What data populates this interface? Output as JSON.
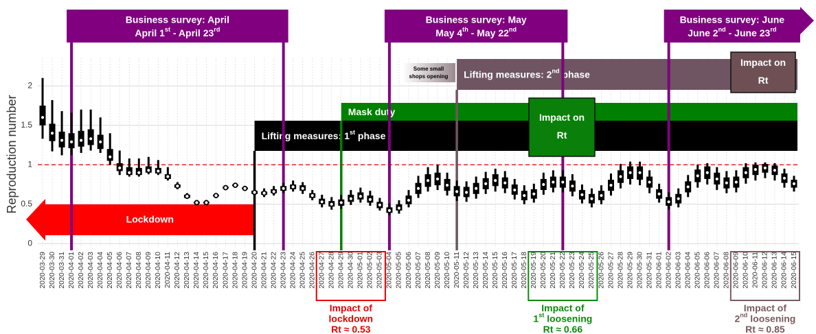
{
  "chart_data": {
    "type": "interval",
    "y_label": "Reproduction number",
    "categories": [
      "2020-03-29",
      "2020-03-30",
      "2020-03-31",
      "2020-04-01",
      "2020-04-02",
      "2020-04-03",
      "2020-04-04",
      "2020-04-05",
      "2020-04-06",
      "2020-04-07",
      "2020-04-08",
      "2020-04-09",
      "2020-04-10",
      "2020-04-11",
      "2020-04-12",
      "2020-04-13",
      "2020-04-14",
      "2020-04-15",
      "2020-04-16",
      "2020-04-17",
      "2020-04-18",
      "2020-04-19",
      "2020-04-20",
      "2020-04-21",
      "2020-04-22",
      "2020-04-23",
      "2020-04-24",
      "2020-04-25",
      "2020-04-26",
      "2020-04-27",
      "2020-04-28",
      "2020-04-29",
      "2020-04-30",
      "2020-05-01",
      "2020-05-02",
      "2020-05-03",
      "2020-05-04",
      "2020-05-05",
      "2020-05-06",
      "2020-05-07",
      "2020-05-08",
      "2020-05-09",
      "2020-05-10",
      "2020-05-11",
      "2020-05-12",
      "2020-05-13",
      "2020-05-14",
      "2020-05-15",
      "2020-05-16",
      "2020-05-17",
      "2020-05-18",
      "2020-05-19",
      "2020-05-20",
      "2020-05-21",
      "2020-05-22",
      "2020-05-23",
      "2020-05-24",
      "2020-05-25",
      "2020-05-26",
      "2020-05-27",
      "2020-05-28",
      "2020-05-29",
      "2020-05-30",
      "2020-05-31",
      "2020-06-01",
      "2020-06-02",
      "2020-06-03",
      "2020-06-04",
      "2020-06-05",
      "2020-06-06",
      "2020-06-07",
      "2020-06-08",
      "2020-06-09",
      "2020-06-10",
      "2020-06-11",
      "2020-06-12",
      "2020-06-13",
      "2020-06-14",
      "2020-06-15"
    ],
    "median": [
      1.6,
      1.4,
      1.31,
      1.29,
      1.31,
      1.33,
      1.29,
      1.1,
      0.96,
      0.9,
      0.9,
      0.93,
      0.92,
      0.85,
      0.73,
      0.6,
      0.52,
      0.52,
      0.61,
      0.71,
      0.74,
      0.7,
      0.65,
      0.64,
      0.66,
      0.7,
      0.72,
      0.7,
      0.61,
      0.53,
      0.5,
      0.52,
      0.57,
      0.6,
      0.56,
      0.49,
      0.42,
      0.45,
      0.55,
      0.7,
      0.8,
      0.82,
      0.74,
      0.66,
      0.65,
      0.7,
      0.76,
      0.8,
      0.77,
      0.68,
      0.61,
      0.63,
      0.75,
      0.78,
      0.78,
      0.73,
      0.62,
      0.57,
      0.61,
      0.74,
      0.85,
      0.9,
      0.9,
      0.78,
      0.63,
      0.53,
      0.57,
      0.72,
      0.86,
      0.9,
      0.82,
      0.77,
      0.78,
      0.9,
      0.94,
      0.96,
      0.93,
      0.83,
      0.76
    ],
    "low95": [
      1.33,
      1.17,
      1.12,
      1.12,
      1.15,
      1.18,
      1.15,
      1.0,
      0.87,
      0.85,
      0.85,
      0.88,
      0.87,
      0.8,
      0.69,
      0.57,
      0.5,
      0.5,
      0.59,
      0.69,
      0.72,
      0.67,
      0.6,
      0.59,
      0.61,
      0.64,
      0.66,
      0.63,
      0.55,
      0.46,
      0.43,
      0.44,
      0.49,
      0.52,
      0.48,
      0.42,
      0.36,
      0.38,
      0.46,
      0.58,
      0.66,
      0.68,
      0.61,
      0.54,
      0.53,
      0.57,
      0.63,
      0.66,
      0.64,
      0.56,
      0.5,
      0.52,
      0.62,
      0.65,
      0.65,
      0.6,
      0.51,
      0.46,
      0.5,
      0.61,
      0.7,
      0.75,
      0.74,
      0.64,
      0.52,
      0.43,
      0.46,
      0.59,
      0.71,
      0.75,
      0.68,
      0.64,
      0.65,
      0.76,
      0.8,
      0.83,
      0.8,
      0.71,
      0.66
    ],
    "low50": [
      1.5,
      1.3,
      1.22,
      1.21,
      1.23,
      1.25,
      1.2,
      1.05,
      0.92,
      0.87,
      0.87,
      0.9,
      0.89,
      0.82,
      0.71,
      0.58,
      0.51,
      0.51,
      0.6,
      0.7,
      0.73,
      0.69,
      0.63,
      0.62,
      0.64,
      0.67,
      0.69,
      0.67,
      0.58,
      0.5,
      0.47,
      0.48,
      0.53,
      0.56,
      0.52,
      0.45,
      0.39,
      0.42,
      0.5,
      0.63,
      0.72,
      0.74,
      0.67,
      0.6,
      0.59,
      0.63,
      0.69,
      0.73,
      0.7,
      0.62,
      0.55,
      0.57,
      0.68,
      0.71,
      0.71,
      0.66,
      0.56,
      0.51,
      0.55,
      0.67,
      0.77,
      0.82,
      0.81,
      0.71,
      0.57,
      0.48,
      0.51,
      0.65,
      0.78,
      0.82,
      0.75,
      0.7,
      0.71,
      0.83,
      0.87,
      0.9,
      0.87,
      0.77,
      0.71
    ],
    "high50": [
      1.75,
      1.52,
      1.42,
      1.4,
      1.43,
      1.45,
      1.38,
      1.2,
      1.02,
      0.97,
      0.96,
      0.98,
      0.96,
      0.88,
      0.75,
      0.62,
      0.53,
      0.53,
      0.62,
      0.72,
      0.75,
      0.71,
      0.67,
      0.66,
      0.69,
      0.73,
      0.75,
      0.74,
      0.64,
      0.57,
      0.54,
      0.56,
      0.62,
      0.65,
      0.61,
      0.53,
      0.46,
      0.5,
      0.61,
      0.77,
      0.88,
      0.9,
      0.82,
      0.73,
      0.72,
      0.77,
      0.83,
      0.88,
      0.84,
      0.75,
      0.67,
      0.69,
      0.82,
      0.85,
      0.85,
      0.8,
      0.68,
      0.63,
      0.67,
      0.81,
      0.93,
      0.98,
      0.98,
      0.85,
      0.69,
      0.59,
      0.63,
      0.79,
      0.94,
      0.98,
      0.9,
      0.84,
      0.85,
      0.97,
      1.0,
      1.01,
      0.99,
      0.89,
      0.81
    ],
    "high95": [
      2.1,
      1.82,
      1.68,
      1.66,
      1.7,
      1.7,
      1.6,
      1.4,
      1.18,
      1.08,
      1.08,
      1.1,
      1.06,
      0.97,
      0.78,
      0.64,
      0.55,
      0.55,
      0.63,
      0.73,
      0.77,
      0.73,
      0.7,
      0.7,
      0.73,
      0.77,
      0.8,
      0.78,
      0.68,
      0.62,
      0.59,
      0.62,
      0.68,
      0.71,
      0.67,
      0.58,
      0.51,
      0.55,
      0.68,
      0.86,
      0.97,
      1.0,
      0.9,
      0.8,
      0.79,
      0.85,
      0.91,
      0.95,
      0.92,
      0.82,
      0.74,
      0.76,
      0.9,
      0.93,
      0.93,
      0.88,
      0.75,
      0.7,
      0.74,
      0.89,
      1.01,
      1.04,
      1.04,
      0.93,
      0.76,
      0.65,
      0.7,
      0.87,
      1.0,
      1.02,
      0.97,
      0.92,
      0.93,
      1.02,
      1.03,
      1.03,
      1.02,
      0.95,
      0.86
    ],
    "ylim": [
      -0.05,
      2.35
    ],
    "yticks": [
      0,
      0.5,
      1,
      1.5,
      2
    ],
    "grid": true,
    "reference_line": 1,
    "surveys": [
      {
        "title": "Business survey: April",
        "dates": [
          "April 1",
          "st",
          " - April 23",
          "rd"
        ],
        "start": "2020-04-01",
        "end": "2020-04-23"
      },
      {
        "title": "Business survey: May",
        "dates": [
          "May 4",
          "th",
          " - May 22",
          "nd"
        ],
        "start": "2020-05-04",
        "end": "2020-05-22"
      },
      {
        "title": "Business survey: June",
        "dates": [
          "June 2",
          "nd",
          " - June 23",
          "rd"
        ],
        "start": "2020-06-02",
        "end": "2020-06-23"
      }
    ],
    "lockdown": {
      "text": "Lockdown",
      "end": "2020-04-20",
      "color": "#ff0000"
    },
    "phases": [
      {
        "text": [
          "Lifting measures: 1",
          "st",
          " phase"
        ],
        "start": "2020-04-20",
        "color": "#000000"
      },
      {
        "text": [
          "Mask duty"
        ],
        "start": "2020-04-29",
        "color": "#008000"
      },
      {
        "text": [
          "Lifting measures: 2",
          "nd",
          " phase"
        ],
        "start": "2020-05-11",
        "color": "#6e5561"
      }
    ],
    "note": [
      "Some small",
      "shops opening"
    ],
    "impact_boxes": [
      {
        "text": [
          "Impact on",
          "Rt"
        ],
        "color": "#0a800a"
      },
      {
        "text": [
          "Impact on",
          "Rt"
        ],
        "color": "#6e5054"
      }
    ],
    "impacts": [
      {
        "lines": [
          [
            "Impact of"
          ],
          [
            "lockdown"
          ],
          [
            "Rt ≈ 0.53"
          ]
        ],
        "from": "2020-04-27",
        "to": "2020-05-03",
        "color": "#e60000"
      },
      {
        "lines": [
          [
            "Impact of"
          ],
          [
            "1",
            "st",
            " loosening"
          ],
          [
            "Rt ≈ 0.66"
          ]
        ],
        "from": "2020-05-19",
        "to": "2020-05-25",
        "color": "#0a8a0a"
      },
      {
        "lines": [
          [
            "Impact of"
          ],
          [
            "2",
            "nd",
            " loosening"
          ],
          [
            "Rt ≈ 0.85"
          ]
        ],
        "from": "2020-06-09",
        "to": "2020-06-15",
        "color": "#7a5a5e"
      }
    ]
  }
}
